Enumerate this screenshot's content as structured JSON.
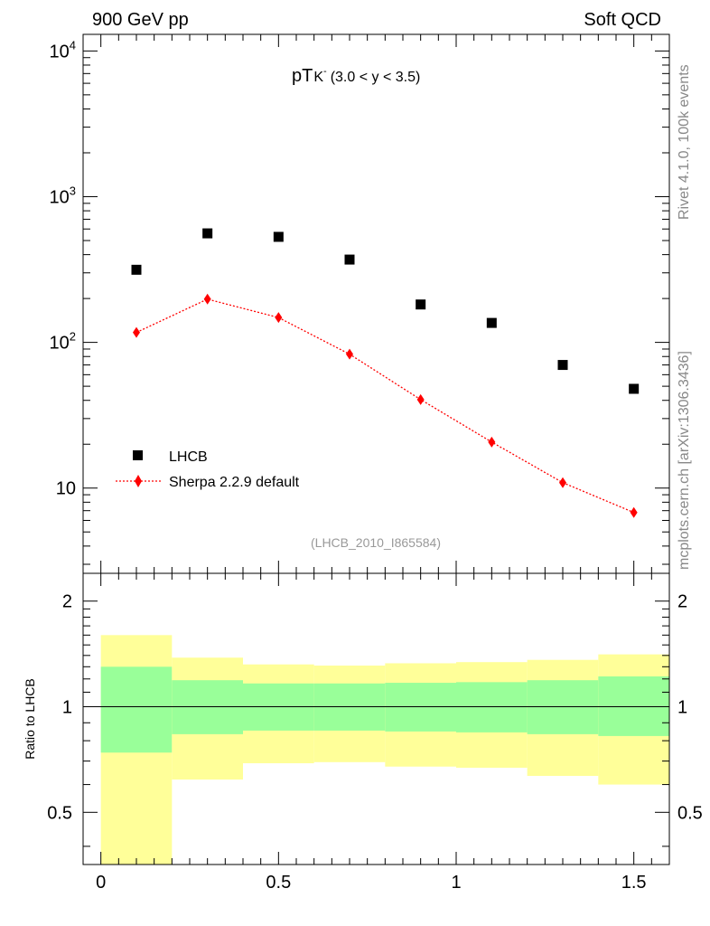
{
  "header": {
    "left": "900 GeV pp",
    "right": "Soft QCD"
  },
  "side_labels": {
    "rivet": "Rivet 4.1.0,  100k events",
    "source": "mcplots.cern.ch [arXiv:1306.3436]"
  },
  "colors": {
    "data": "#000000",
    "mc": "#ff0000",
    "band_inner": "#99ff99",
    "band_outer": "#ffff99"
  },
  "chart_data": [
    {
      "type": "scatter",
      "title": "pT(K⁻) (3.0 < y < 3.5)",
      "title_main": "pT",
      "title_particle": "K",
      "title_charge": "-",
      "title_range": "(3.0 < y < 3.5)",
      "analysis_tag": "(LHCB_2010_I865584)",
      "yscale": "log",
      "xlim": [
        -0.05,
        1.6
      ],
      "ylim": [
        2.6,
        13000
      ],
      "y_ticks": [
        {
          "value": 10,
          "base": "10",
          "exp": ""
        },
        {
          "value": 100,
          "base": "10",
          "exp": "2"
        },
        {
          "value": 1000,
          "base": "10",
          "exp": "3"
        },
        {
          "value": 10000,
          "base": "10",
          "exp": "4"
        }
      ],
      "legend": {
        "position": "bottom-left",
        "entries": [
          "LHCB",
          "Sherpa 2.2.9 default"
        ]
      },
      "series": [
        {
          "name": "LHCB",
          "marker": "square",
          "x": [
            0.1,
            0.3,
            0.5,
            0.7,
            0.9,
            1.1,
            1.3,
            1.5
          ],
          "y": [
            315,
            560,
            530,
            370,
            182,
            136,
            70,
            48
          ]
        },
        {
          "name": "Sherpa 2.2.9 default",
          "marker": "diamond",
          "line": "dotted",
          "x": [
            0.1,
            0.3,
            0.5,
            0.7,
            0.9,
            1.1,
            1.3,
            1.5
          ],
          "y": [
            117,
            198,
            148,
            83,
            40.5,
            20.7,
            10.9,
            6.8
          ]
        }
      ]
    },
    {
      "type": "area",
      "ylabel": "Ratio to LHCB",
      "yscale": "log",
      "xlim": [
        -0.05,
        1.6
      ],
      "ylim": [
        0.355,
        2.4
      ],
      "reference_line": 1,
      "x_ticks": [
        {
          "value": 0,
          "label": "0"
        },
        {
          "value": 0.5,
          "label": "0.5"
        },
        {
          "value": 1,
          "label": "1"
        },
        {
          "value": 1.5,
          "label": "1.5"
        }
      ],
      "y_ticks": [
        {
          "value": 0.5,
          "label": "0.5"
        },
        {
          "value": 1,
          "label": "1"
        },
        {
          "value": 2,
          "label": "2"
        }
      ],
      "bins": [
        0,
        0.2,
        0.4,
        0.6,
        0.8,
        1.0,
        1.2,
        1.4,
        1.6
      ],
      "band_outer": {
        "lo": [
          0.35,
          0.62,
          0.69,
          0.695,
          0.675,
          0.67,
          0.635,
          0.6
        ],
        "hi": [
          1.6,
          1.38,
          1.32,
          1.31,
          1.33,
          1.34,
          1.36,
          1.41
        ]
      },
      "band_inner": {
        "lo": [
          0.74,
          0.835,
          0.855,
          0.855,
          0.85,
          0.845,
          0.835,
          0.825
        ],
        "hi": [
          1.3,
          1.19,
          1.165,
          1.165,
          1.17,
          1.175,
          1.19,
          1.22
        ]
      }
    }
  ]
}
